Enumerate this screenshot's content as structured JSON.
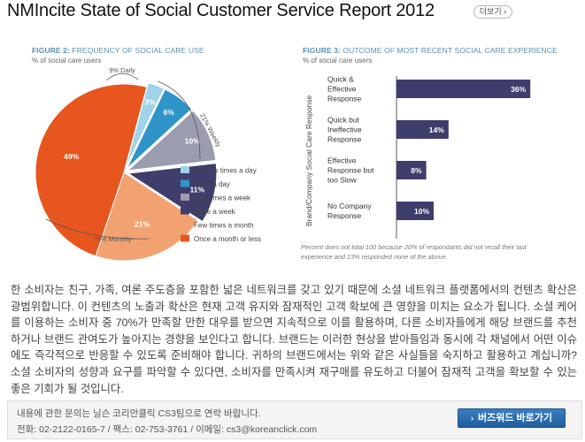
{
  "header": {
    "title": "NMIncite State of Social Customer Service Report 2012",
    "more_label": "더보기 ›"
  },
  "figure2": {
    "title_bold": "FIGURE 2:",
    "title_rest": " FREQUENCY OF SOCIAL CARE USE",
    "subtitle": "% of social care users",
    "group_labels": {
      "daily": "9% Daily",
      "weekly": "21% Weekly",
      "monthly": "70% Monthly"
    },
    "chart_data": {
      "type": "pie",
      "slices": [
        {
          "label": "Multiple times a day",
          "value": 3,
          "display": "3%",
          "color": "#9fd3ea"
        },
        {
          "label": "Once a day",
          "value": 6,
          "display": "6%",
          "color": "#2f95c8"
        },
        {
          "label": "Few times a week",
          "value": 10,
          "display": "10%",
          "color": "#9c9cb0"
        },
        {
          "label": "Once a week",
          "value": 11,
          "display": "11%",
          "color": "#3f3d6b"
        },
        {
          "label": "Few times a month",
          "value": 21,
          "display": "21%",
          "color": "#f2a270"
        },
        {
          "label": "Once a month or less",
          "value": 49,
          "display": "49%",
          "color": "#e8561f"
        }
      ]
    }
  },
  "figure3": {
    "title_bold": "FIGURE 3:",
    "title_rest": " OUTCOME OF MOST RECENT SOCIAL CARE EXPERIENCE",
    "subtitle": "% of social care users",
    "ylabel": "Brand/Company Social Care Response",
    "footnote": "Percent does not total 100 because 20% of respondants did not recall their last experience and 13% responded none of the above.",
    "chart_data": {
      "type": "bar",
      "orientation": "horizontal",
      "categories": [
        "Quick & Effective Response",
        "Quick but Ineffective Response",
        "Effective Response but too Slow",
        "No Company Response"
      ],
      "values": [
        36,
        14,
        8,
        10
      ],
      "value_labels": [
        "36%",
        "14%",
        "8%",
        "10%"
      ],
      "xlim": [
        0,
        40
      ],
      "color": "#3f3d6b"
    }
  },
  "body_text": "한 소비자는 친구, 가족, 여론 주도층을 포함한 넓은 네트워크를 갖고 있기 때문에 소셜 네트워크 플랫폼에서의 컨텐츠 확산은 광범위합니다. 이 컨텐츠의 노출과 확산은 현재 고객 유지와 잠재적인 고객 확보에 큰 영향을 미치는 요소가 됩니다. 소셜 케어를 이용하는 소비자 중 70%가 만족할 만한 대우를 받으면 지속적으로 이를 활용하며, 다른 소비자들에게 해당 브랜드를 추천하거나 브랜드 관여도가 높아지는 경향을 보인다고 합니다. 브랜드는 이러한 현상을 받아들임과 동시에 각 채널에서 어떤 이슈에도 즉각적으로 반응할 수 있도록 준비해야 합니다. 귀하의 브랜드에서는 위와 같은 사실들을 숙지하고 활용하고 계십니까? 소셜 소비자의 성향과 요구를 파악할 수 있다면, 소비자를 만족시켜 재구매를 유도하고 더불어 잠재적 고객을 확보할 수 있는 좋은 기회가 될 것입니다.",
  "footer": {
    "line1": "내용에 관한 문의는 닐슨 코리안클릭 CS3팀으로 연락 바랍니다.",
    "line2": "전화: 02-2122-0165-7 / 팩스: 02-753-3761 / 이메일: cs3@koreanclick.com",
    "button_label": "버즈워드 바로가기"
  }
}
